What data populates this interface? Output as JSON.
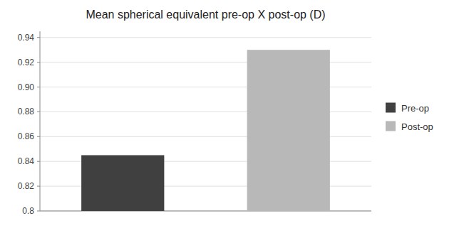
{
  "chart_data": {
    "type": "bar",
    "title": "Mean spherical equivalent pre-op X post-op (D)",
    "categories": [
      "Pre-op",
      "Post-op"
    ],
    "values": [
      0.845,
      0.93
    ],
    "colors": [
      "#404040",
      "#b8b8b8"
    ],
    "ylim": [
      0.8,
      0.945
    ],
    "yticks": [
      0.8,
      0.82,
      0.84,
      0.86,
      0.88,
      {
        "value": 0.9,
        "label": "0.90"
      },
      0.92,
      0.94
    ],
    "grid": true,
    "legend": "right",
    "tick_labels": "y"
  }
}
